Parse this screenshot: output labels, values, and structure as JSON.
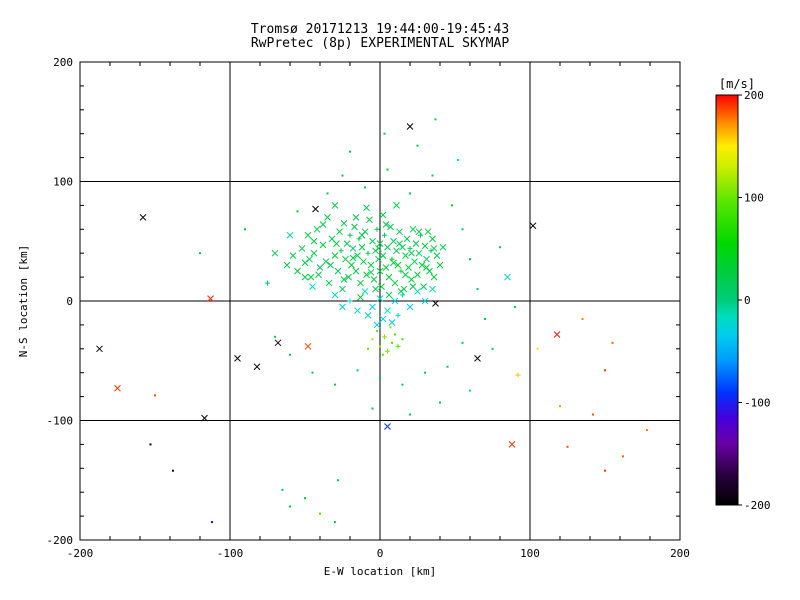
{
  "chart_data": {
    "type": "scatter",
    "title_line1": "Tromsø 20171213 19:44:00-19:45:43",
    "title_line2": "RwPretec (8p) EXPERIMENTAL SKYMAP",
    "title_color": "#993333",
    "xlabel": "E-W location [km]",
    "ylabel": "N-S location [km]",
    "xlim": [
      -200,
      200
    ],
    "ylim": [
      -200,
      200
    ],
    "xticks": [
      -200,
      -100,
      0,
      100,
      200
    ],
    "yticks": [
      -200,
      -100,
      0,
      100,
      200
    ],
    "minor_tick_step": 20,
    "grid": true,
    "colorbar": {
      "label": "[m/s]",
      "label_color": "#ff0000",
      "ticks": [
        200,
        100,
        0,
        -100,
        -200
      ],
      "vmin": -200,
      "vmax": 200,
      "stops": [
        {
          "v": -200,
          "c": "#000000"
        },
        {
          "v": -170,
          "c": "#2a0040"
        },
        {
          "v": -140,
          "c": "#6a00a8"
        },
        {
          "v": -115,
          "c": "#4400dd"
        },
        {
          "v": -90,
          "c": "#0033ff"
        },
        {
          "v": -60,
          "c": "#0099ff"
        },
        {
          "v": -35,
          "c": "#00ccee"
        },
        {
          "v": -15,
          "c": "#00ddbb"
        },
        {
          "v": 0,
          "c": "#00cc77"
        },
        {
          "v": 25,
          "c": "#00cc44"
        },
        {
          "v": 55,
          "c": "#00d800"
        },
        {
          "v": 95,
          "c": "#55e600"
        },
        {
          "v": 130,
          "c": "#ccee00"
        },
        {
          "v": 150,
          "c": "#ffee00"
        },
        {
          "v": 170,
          "c": "#ff9900"
        },
        {
          "v": 200,
          "c": "#ff0000"
        }
      ]
    },
    "points_format": [
      "ew_km",
      "ns_km",
      "velocity_ms",
      "marker"
    ],
    "points": [
      [
        -62,
        30,
        25,
        "x"
      ],
      [
        -58,
        38,
        18,
        "x"
      ],
      [
        -55,
        25,
        30,
        "x"
      ],
      [
        -52,
        44,
        22,
        "x"
      ],
      [
        -50,
        32,
        15,
        "x"
      ],
      [
        -48,
        55,
        28,
        "x"
      ],
      [
        -46,
        20,
        35,
        "x"
      ],
      [
        -44,
        40,
        20,
        "x"
      ],
      [
        -42,
        60,
        25,
        "x"
      ],
      [
        -40,
        28,
        12,
        "x"
      ],
      [
        -38,
        47,
        30,
        "x"
      ],
      [
        -36,
        33,
        22,
        "x"
      ],
      [
        -35,
        70,
        18,
        "x"
      ],
      [
        -34,
        15,
        26,
        "x"
      ],
      [
        -32,
        52,
        20,
        "x"
      ],
      [
        -30,
        38,
        33,
        "x"
      ],
      [
        -28,
        25,
        15,
        "x"
      ],
      [
        -27,
        58,
        24,
        "x"
      ],
      [
        -26,
        42,
        28,
        "+"
      ],
      [
        -25,
        10,
        18,
        "x"
      ],
      [
        -24,
        65,
        22,
        "x"
      ],
      [
        -23,
        35,
        30,
        "x"
      ],
      [
        -22,
        48,
        16,
        "x"
      ],
      [
        -21,
        20,
        25,
        "x"
      ],
      [
        -20,
        55,
        20,
        "+"
      ],
      [
        -19,
        30,
        35,
        "x"
      ],
      [
        -18,
        44,
        12,
        "x"
      ],
      [
        -17,
        62,
        28,
        "x"
      ],
      [
        -16,
        25,
        22,
        "x"
      ],
      [
        -15,
        38,
        30,
        "x"
      ],
      [
        -14,
        52,
        18,
        "+"
      ],
      [
        -13,
        15,
        25,
        "x"
      ],
      [
        -12,
        45,
        20,
        "x"
      ],
      [
        -11,
        33,
        28,
        "x"
      ],
      [
        -10,
        58,
        15,
        "x"
      ],
      [
        -9,
        22,
        32,
        "x"
      ],
      [
        -8,
        40,
        24,
        "+"
      ],
      [
        -7,
        68,
        20,
        "x"
      ],
      [
        -6,
        30,
        28,
        "x"
      ],
      [
        -5,
        50,
        16,
        "x"
      ],
      [
        -4,
        18,
        30,
        "x"
      ],
      [
        -3,
        42,
        22,
        "x"
      ],
      [
        -2,
        60,
        26,
        "+"
      ],
      [
        -1,
        35,
        18,
        "x"
      ],
      [
        0,
        25,
        32,
        "x"
      ],
      [
        0,
        48,
        20,
        "x"
      ],
      [
        1,
        12,
        28,
        "x"
      ],
      [
        2,
        38,
        24,
        "x"
      ],
      [
        3,
        55,
        16,
        "+"
      ],
      [
        4,
        28,
        30,
        "x"
      ],
      [
        5,
        45,
        22,
        "x"
      ],
      [
        6,
        20,
        26,
        "x"
      ],
      [
        7,
        62,
        18,
        "x"
      ],
      [
        8,
        35,
        30,
        "+"
      ],
      [
        9,
        50,
        14,
        "x"
      ],
      [
        10,
        15,
        28,
        "x"
      ],
      [
        11,
        42,
        22,
        "x"
      ],
      [
        12,
        30,
        34,
        "x"
      ],
      [
        13,
        58,
        20,
        "x"
      ],
      [
        14,
        25,
        26,
        "+"
      ],
      [
        15,
        45,
        18,
        "x"
      ],
      [
        16,
        10,
        30,
        "x"
      ],
      [
        17,
        38,
        24,
        "x"
      ],
      [
        18,
        52,
        16,
        "x"
      ],
      [
        19,
        28,
        28,
        "x"
      ],
      [
        20,
        44,
        20,
        "+"
      ],
      [
        21,
        18,
        32,
        "x"
      ],
      [
        22,
        60,
        22,
        "x"
      ],
      [
        23,
        33,
        26,
        "x"
      ],
      [
        24,
        48,
        18,
        "x"
      ],
      [
        25,
        22,
        30,
        "x"
      ],
      [
        26,
        40,
        14,
        "x"
      ],
      [
        27,
        55,
        24,
        "+"
      ],
      [
        28,
        30,
        28,
        "x"
      ],
      [
        29,
        12,
        20,
        "x"
      ],
      [
        30,
        46,
        26,
        "x"
      ],
      [
        31,
        35,
        18,
        "x"
      ],
      [
        32,
        58,
        30,
        "x"
      ],
      [
        33,
        25,
        22,
        "x"
      ],
      [
        34,
        42,
        16,
        "+"
      ],
      [
        35,
        52,
        28,
        "x"
      ],
      [
        36,
        20,
        24,
        "x"
      ],
      [
        38,
        38,
        20,
        "x"
      ],
      [
        40,
        30,
        26,
        "x"
      ],
      [
        42,
        45,
        18,
        "x"
      ],
      [
        -50,
        20,
        24,
        "x"
      ],
      [
        -47,
        35,
        18,
        "x"
      ],
      [
        -44,
        50,
        28,
        "x"
      ],
      [
        -41,
        22,
        20,
        "x"
      ],
      [
        -38,
        64,
        26,
        "x"
      ],
      [
        -33,
        30,
        16,
        "x"
      ],
      [
        -29,
        48,
        30,
        "x"
      ],
      [
        -24,
        18,
        24,
        "x"
      ],
      [
        -18,
        36,
        20,
        "x"
      ],
      [
        -12,
        55,
        28,
        "x"
      ],
      [
        -6,
        24,
        16,
        "x"
      ],
      [
        -1,
        44,
        26,
        "x"
      ],
      [
        4,
        64,
        20,
        "x"
      ],
      [
        9,
        32,
        30,
        "x"
      ],
      [
        13,
        48,
        18,
        "x"
      ],
      [
        17,
        22,
        28,
        "x"
      ],
      [
        21,
        40,
        24,
        "x"
      ],
      [
        26,
        58,
        16,
        "x"
      ],
      [
        31,
        28,
        26,
        "x"
      ],
      [
        36,
        44,
        20,
        "x"
      ],
      [
        -16,
        70,
        24,
        "x"
      ],
      [
        -9,
        78,
        18,
        "x"
      ],
      [
        2,
        72,
        26,
        "x"
      ],
      [
        11,
        80,
        20,
        "x"
      ],
      [
        -30,
        80,
        22,
        "x"
      ],
      [
        6,
        5,
        24,
        "x"
      ],
      [
        -3,
        10,
        30,
        "x"
      ],
      [
        14,
        8,
        18,
        "x"
      ],
      [
        -13,
        3,
        26,
        "x"
      ],
      [
        22,
        12,
        22,
        "x"
      ],
      [
        -45,
        12,
        -20,
        "x"
      ],
      [
        -30,
        5,
        -15,
        "x"
      ],
      [
        -20,
        0,
        -25,
        "+"
      ],
      [
        -10,
        8,
        -18,
        "x"
      ],
      [
        -5,
        -5,
        -30,
        "x"
      ],
      [
        0,
        2,
        -22,
        "x"
      ],
      [
        5,
        -8,
        -15,
        "x"
      ],
      [
        10,
        0,
        -28,
        "x"
      ],
      [
        15,
        5,
        -20,
        "+"
      ],
      [
        20,
        -5,
        -35,
        "x"
      ],
      [
        2,
        -15,
        -25,
        "x"
      ],
      [
        -8,
        -12,
        -18,
        "x"
      ],
      [
        8,
        -18,
        -30,
        "x"
      ],
      [
        -15,
        -8,
        -22,
        "x"
      ],
      [
        25,
        8,
        -15,
        "x"
      ],
      [
        30,
        0,
        -25,
        "x"
      ],
      [
        -2,
        -20,
        -35,
        "x"
      ],
      [
        12,
        -12,
        -20,
        "+"
      ],
      [
        -25,
        -5,
        -28,
        "x"
      ],
      [
        35,
        10,
        -18,
        "x"
      ],
      [
        -2,
        -25,
        100,
        "."
      ],
      [
        3,
        -30,
        110,
        "+"
      ],
      [
        8,
        -35,
        95,
        "."
      ],
      [
        0,
        -38,
        120,
        "."
      ],
      [
        5,
        -42,
        105,
        "+"
      ],
      [
        10,
        -28,
        90,
        "."
      ],
      [
        -5,
        -32,
        115,
        "."
      ],
      [
        2,
        -45,
        100,
        "."
      ],
      [
        12,
        -38,
        95,
        "+"
      ],
      [
        7,
        -22,
        110,
        "."
      ],
      [
        15,
        -32,
        85,
        "."
      ],
      [
        -8,
        -40,
        100,
        "."
      ],
      [
        -120,
        40,
        15,
        "."
      ],
      [
        -90,
        60,
        25,
        "."
      ],
      [
        -75,
        15,
        10,
        "+"
      ],
      [
        -70,
        -30,
        20,
        "."
      ],
      [
        -60,
        -45,
        15,
        "."
      ],
      [
        -55,
        75,
        30,
        "."
      ],
      [
        -35,
        90,
        20,
        "."
      ],
      [
        -25,
        105,
        25,
        "."
      ],
      [
        -10,
        95,
        15,
        "."
      ],
      [
        5,
        110,
        30,
        "."
      ],
      [
        20,
        90,
        20,
        "."
      ],
      [
        35,
        105,
        15,
        "."
      ],
      [
        48,
        80,
        25,
        "."
      ],
      [
        55,
        60,
        18,
        "."
      ],
      [
        60,
        35,
        22,
        "."
      ],
      [
        65,
        10,
        15,
        "."
      ],
      [
        70,
        -15,
        25,
        "."
      ],
      [
        55,
        -35,
        20,
        "."
      ],
      [
        45,
        -55,
        15,
        "."
      ],
      [
        30,
        -60,
        25,
        "."
      ],
      [
        15,
        -70,
        18,
        "."
      ],
      [
        0,
        -65,
        22,
        "."
      ],
      [
        -15,
        -58,
        15,
        "."
      ],
      [
        -30,
        -70,
        25,
        "."
      ],
      [
        -45,
        -60,
        20,
        "."
      ],
      [
        25,
        130,
        20,
        "."
      ],
      [
        37,
        152,
        25,
        "."
      ],
      [
        3,
        140,
        15,
        "."
      ],
      [
        52,
        118,
        -10,
        "."
      ],
      [
        -20,
        125,
        20,
        "."
      ],
      [
        80,
        45,
        10,
        "."
      ],
      [
        85,
        20,
        -15,
        "x"
      ],
      [
        90,
        -5,
        20,
        "."
      ],
      [
        75,
        -40,
        15,
        "."
      ],
      [
        60,
        -75,
        -20,
        "."
      ],
      [
        40,
        -85,
        20,
        "."
      ],
      [
        20,
        -95,
        15,
        "."
      ],
      [
        -5,
        -90,
        25,
        "."
      ],
      [
        -60,
        55,
        -10,
        "x"
      ],
      [
        -70,
        40,
        15,
        "x"
      ],
      [
        -65,
        -158,
        20,
        "."
      ],
      [
        -60,
        -172,
        25,
        "."
      ],
      [
        -50,
        -165,
        30,
        "."
      ],
      [
        -40,
        -178,
        90,
        "."
      ],
      [
        -30,
        -185,
        25,
        "."
      ],
      [
        -28,
        -150,
        15,
        "."
      ],
      [
        -112,
        -185,
        -120,
        "."
      ],
      [
        5,
        -105,
        -90,
        "x"
      ],
      [
        20,
        146,
        -195,
        "x"
      ],
      [
        -158,
        70,
        -190,
        "x"
      ],
      [
        -43,
        77,
        -195,
        "x"
      ],
      [
        102,
        63,
        -190,
        "x"
      ],
      [
        -187,
        -40,
        -195,
        "x"
      ],
      [
        -95,
        -48,
        -190,
        "x"
      ],
      [
        -82,
        -55,
        -195,
        "x"
      ],
      [
        37,
        -2,
        -190,
        "x"
      ],
      [
        -117,
        -98,
        -190,
        "x"
      ],
      [
        65,
        -48,
        -190,
        "x"
      ],
      [
        -68,
        -35,
        -185,
        "x"
      ],
      [
        -138,
        -142,
        -185,
        "."
      ],
      [
        -153,
        -120,
        -185,
        "."
      ],
      [
        -113,
        2,
        195,
        "x"
      ],
      [
        -175,
        -73,
        190,
        "x"
      ],
      [
        118,
        -28,
        195,
        "x"
      ],
      [
        88,
        -120,
        190,
        "x"
      ],
      [
        -48,
        -38,
        185,
        "x"
      ],
      [
        -150,
        -79,
        185,
        "."
      ],
      [
        125,
        -122,
        185,
        "."
      ],
      [
        150,
        -142,
        190,
        "."
      ],
      [
        162,
        -130,
        180,
        "."
      ],
      [
        178,
        -108,
        175,
        "."
      ],
      [
        142,
        -95,
        185,
        "."
      ],
      [
        120,
        -88,
        170,
        "."
      ],
      [
        155,
        -35,
        180,
        "."
      ],
      [
        92,
        -62,
        160,
        "+"
      ],
      [
        105,
        -40,
        155,
        "."
      ],
      [
        135,
        -15,
        175,
        "."
      ],
      [
        150,
        -58,
        190,
        "."
      ]
    ]
  }
}
